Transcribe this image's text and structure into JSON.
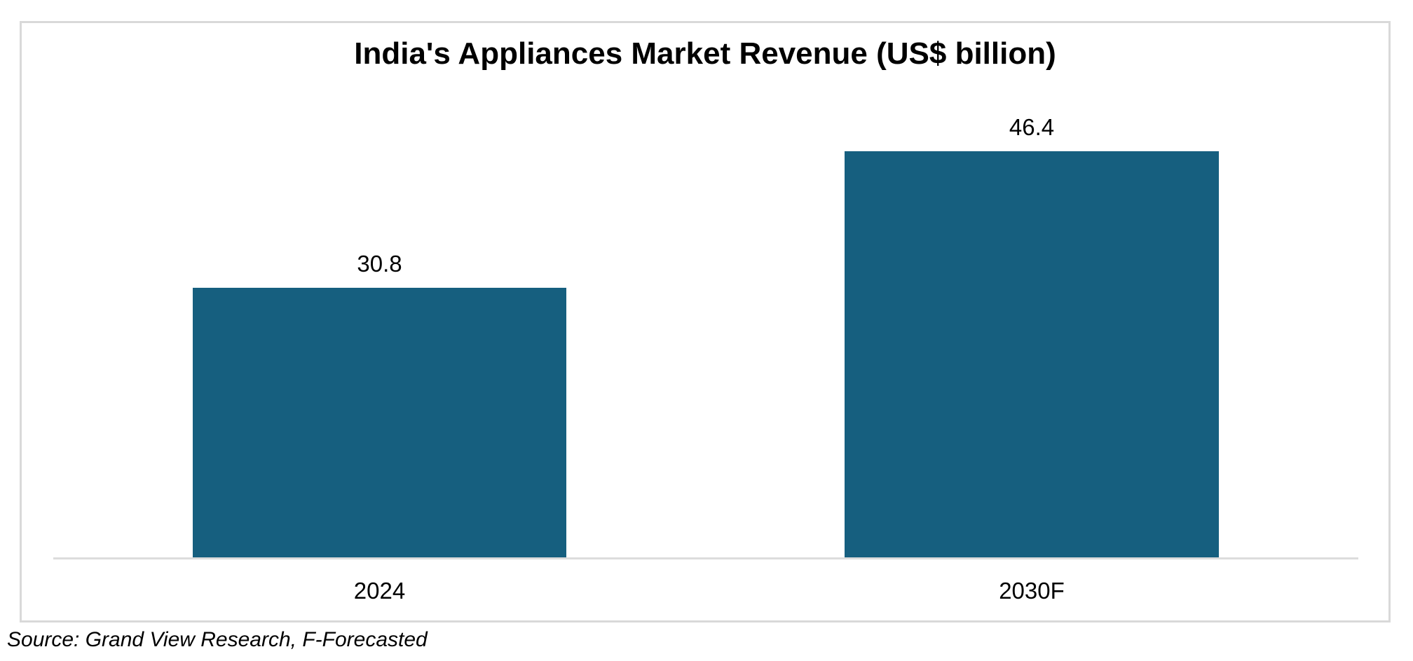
{
  "chart_data": {
    "type": "bar",
    "title": "India's Appliances Market Revenue (US$ billion)",
    "categories": [
      "2024",
      "2030F"
    ],
    "values": [
      30.8,
      46.4
    ],
    "value_labels": [
      "30.8",
      "46.4"
    ],
    "xlabel": "",
    "ylabel": "",
    "ylim": [
      0,
      50
    ],
    "grid": false,
    "legend": "none",
    "bar_color": "#165F7F",
    "axis_line_color": "#DCDCDC"
  },
  "frame": {
    "border_color": "#D9D9D9",
    "background": "#FFFFFF"
  },
  "source": {
    "text": "Source: Grand View Research, F-Forecasted"
  }
}
